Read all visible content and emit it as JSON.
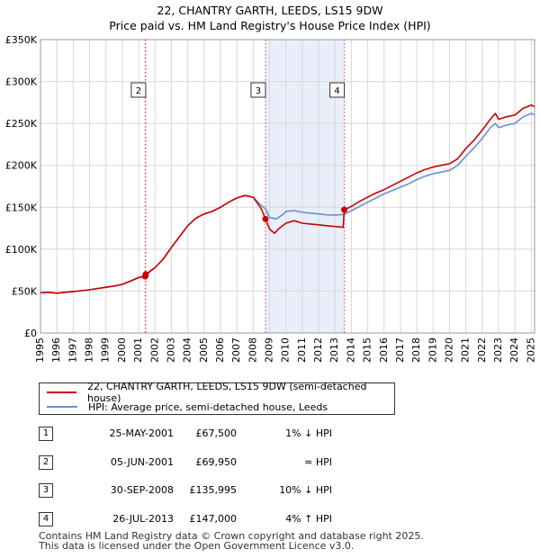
{
  "chart_data": {
    "type": "line",
    "title": "22, CHANTRY GARTH, LEEDS, LS15 9DW",
    "subtitle": "Price paid vs. HM Land Registry's House Price Index (HPI)",
    "xlim": [
      1995,
      2025.2
    ],
    "ylim": [
      0,
      350000
    ],
    "x_ticks": [
      1995,
      1996,
      1997,
      1998,
      1999,
      2000,
      2001,
      2002,
      2003,
      2004,
      2005,
      2006,
      2007,
      2008,
      2009,
      2010,
      2011,
      2012,
      2013,
      2014,
      2015,
      2016,
      2017,
      2018,
      2019,
      2020,
      2021,
      2022,
      2023,
      2024,
      2025
    ],
    "y_ticks": [
      0,
      50000,
      100000,
      150000,
      200000,
      250000,
      300000,
      350000
    ],
    "y_tick_labels": [
      "£0",
      "£50K",
      "£100K",
      "£150K",
      "£200K",
      "£250K",
      "£300K",
      "£350K"
    ],
    "grid": true,
    "shaded_region": [
      2008.75,
      2013.57
    ],
    "series": [
      {
        "name": "22, CHANTRY GARTH, LEEDS, LS15 9DW (semi-detached house)",
        "color": "#cc0000",
        "points": [
          [
            1995,
            48000
          ],
          [
            1995.5,
            48500
          ],
          [
            1996,
            47500
          ],
          [
            1996.5,
            48500
          ],
          [
            1997,
            49500
          ],
          [
            1997.5,
            50500
          ],
          [
            1998,
            51500
          ],
          [
            1998.5,
            53000
          ],
          [
            1999,
            54500
          ],
          [
            1999.5,
            56000
          ],
          [
            2000,
            58000
          ],
          [
            2000.5,
            62000
          ],
          [
            2001,
            66000
          ],
          [
            2001.4,
            67500
          ],
          [
            2001.43,
            69950
          ],
          [
            2002,
            78000
          ],
          [
            2002.5,
            88000
          ],
          [
            2003,
            102000
          ],
          [
            2003.5,
            115000
          ],
          [
            2004,
            128000
          ],
          [
            2004.5,
            137000
          ],
          [
            2005,
            142000
          ],
          [
            2005.5,
            145000
          ],
          [
            2006,
            150000
          ],
          [
            2006.5,
            156000
          ],
          [
            2007,
            161000
          ],
          [
            2007.5,
            164000
          ],
          [
            2008,
            162000
          ],
          [
            2008.5,
            148000
          ],
          [
            2008.75,
            135995
          ],
          [
            2009,
            124000
          ],
          [
            2009.3,
            119000
          ],
          [
            2009.6,
            125000
          ],
          [
            2010,
            131000
          ],
          [
            2010.5,
            134000
          ],
          [
            2011,
            131000
          ],
          [
            2011.5,
            130000
          ],
          [
            2012,
            129000
          ],
          [
            2012.5,
            128000
          ],
          [
            2013,
            127000
          ],
          [
            2013.5,
            126000
          ],
          [
            2013.57,
            147000
          ],
          [
            2014,
            151000
          ],
          [
            2014.5,
            157000
          ],
          [
            2015,
            162000
          ],
          [
            2015.5,
            167000
          ],
          [
            2016,
            171000
          ],
          [
            2016.5,
            176000
          ],
          [
            2017,
            181000
          ],
          [
            2017.5,
            186000
          ],
          [
            2018,
            191000
          ],
          [
            2018.5,
            195000
          ],
          [
            2019,
            198000
          ],
          [
            2019.5,
            200000
          ],
          [
            2020,
            202000
          ],
          [
            2020.5,
            208000
          ],
          [
            2021,
            220000
          ],
          [
            2021.5,
            230000
          ],
          [
            2022,
            242000
          ],
          [
            2022.5,
            255000
          ],
          [
            2022.8,
            262000
          ],
          [
            2023,
            255000
          ],
          [
            2023.5,
            258000
          ],
          [
            2024,
            260000
          ],
          [
            2024.5,
            268000
          ],
          [
            2025,
            272000
          ],
          [
            2025.2,
            270000
          ]
        ]
      },
      {
        "name": "HPI: Average price, semi-detached house, Leeds",
        "color": "#6a8fd0",
        "points": [
          [
            1995,
            48000
          ],
          [
            1995.5,
            48500
          ],
          [
            1996,
            47500
          ],
          [
            1996.5,
            48500
          ],
          [
            1997,
            49500
          ],
          [
            1997.5,
            50500
          ],
          [
            1998,
            51500
          ],
          [
            1998.5,
            53000
          ],
          [
            1999,
            54500
          ],
          [
            1999.5,
            56000
          ],
          [
            2000,
            58000
          ],
          [
            2000.5,
            62000
          ],
          [
            2001,
            66500
          ],
          [
            2001.4,
            68200
          ],
          [
            2002,
            78000
          ],
          [
            2002.5,
            88000
          ],
          [
            2003,
            102000
          ],
          [
            2003.5,
            115000
          ],
          [
            2004,
            128000
          ],
          [
            2004.5,
            137000
          ],
          [
            2005,
            142000
          ],
          [
            2005.5,
            145000
          ],
          [
            2006,
            150000
          ],
          [
            2006.5,
            156000
          ],
          [
            2007,
            161000
          ],
          [
            2007.5,
            164000
          ],
          [
            2008,
            162000
          ],
          [
            2008.5,
            152000
          ],
          [
            2008.75,
            148000
          ],
          [
            2009,
            138000
          ],
          [
            2009.4,
            136000
          ],
          [
            2009.8,
            141000
          ],
          [
            2010,
            145000
          ],
          [
            2010.5,
            146000
          ],
          [
            2011,
            144000
          ],
          [
            2011.5,
            143000
          ],
          [
            2012,
            142000
          ],
          [
            2012.5,
            141000
          ],
          [
            2013,
            140500
          ],
          [
            2013.57,
            141500
          ],
          [
            2014,
            146000
          ],
          [
            2014.5,
            151000
          ],
          [
            2015,
            156000
          ],
          [
            2015.5,
            161000
          ],
          [
            2016,
            166000
          ],
          [
            2016.5,
            170000
          ],
          [
            2017,
            174000
          ],
          [
            2017.5,
            178000
          ],
          [
            2018,
            183000
          ],
          [
            2018.5,
            187000
          ],
          [
            2019,
            190000
          ],
          [
            2019.5,
            192000
          ],
          [
            2020,
            194000
          ],
          [
            2020.5,
            200000
          ],
          [
            2021,
            211000
          ],
          [
            2021.5,
            221000
          ],
          [
            2022,
            232000
          ],
          [
            2022.5,
            245000
          ],
          [
            2022.8,
            250000
          ],
          [
            2023,
            245000
          ],
          [
            2023.5,
            248000
          ],
          [
            2024,
            250000
          ],
          [
            2024.5,
            258000
          ],
          [
            2025,
            262000
          ],
          [
            2025.2,
            260000
          ]
        ]
      }
    ],
    "transactions": [
      {
        "id": "1",
        "date": "25-MAY-2001",
        "price": "£67,500",
        "hpi": "1% ↓ HPI",
        "x": 2001.4,
        "y": 67500
      },
      {
        "id": "2",
        "date": "05-JUN-2001",
        "price": "£69,950",
        "hpi": "≈ HPI",
        "x": 2001.43,
        "y": 69950
      },
      {
        "id": "3",
        "date": "30-SEP-2008",
        "price": "£135,995",
        "hpi": "10% ↓ HPI",
        "x": 2008.75,
        "y": 135995
      },
      {
        "id": "4",
        "date": "26-JUL-2013",
        "price": "£147,000",
        "hpi": "4% ↑ HPI",
        "x": 2013.57,
        "y": 147000
      }
    ],
    "marker_labels_shown": [
      "2",
      "3",
      "4"
    ]
  },
  "footer": {
    "line1": "Contains HM Land Registry data © Crown copyright and database right 2025.",
    "line2": "This data is licensed under the Open Government Licence v3.0."
  }
}
